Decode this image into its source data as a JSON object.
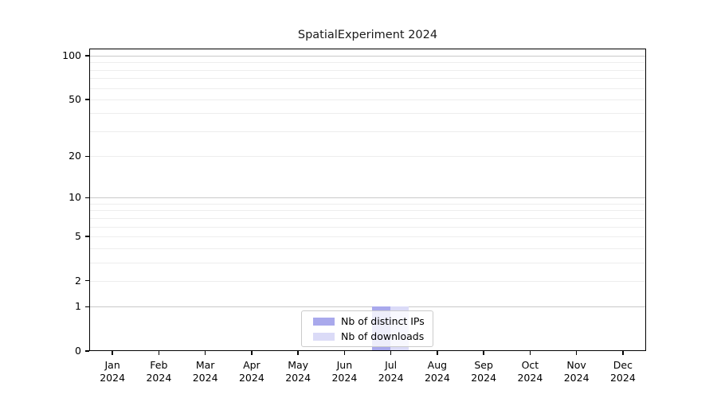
{
  "figure": {
    "background": "#ffffff"
  },
  "chart_data": {
    "type": "bar",
    "title": "SpatialExperiment 2024",
    "year": "2024",
    "categories": [
      "Jan",
      "Feb",
      "Mar",
      "Apr",
      "May",
      "Jun",
      "Jul",
      "Aug",
      "Sep",
      "Oct",
      "Nov",
      "Dec"
    ],
    "series": [
      {
        "name": "Nb of distinct IPs",
        "color": "#a9a9ec",
        "values": [
          0,
          0,
          0,
          0,
          0,
          0,
          1,
          0,
          0,
          0,
          0,
          0
        ]
      },
      {
        "name": "Nb of downloads",
        "color": "#dbdbf7",
        "values": [
          0,
          0,
          0,
          0,
          0,
          0,
          1,
          0,
          0,
          0,
          0,
          0
        ]
      }
    ],
    "xlabel": "",
    "ylabel": "",
    "x_axis": {
      "tick_labels": [
        "Jan 2024",
        "Feb 2024",
        "Mar 2024",
        "Apr 2024",
        "May 2024",
        "Jun 2024",
        "Jul 2024",
        "Aug 2024",
        "Sep 2024",
        "Oct 2024",
        "Nov 2024",
        "Dec 2024"
      ]
    },
    "y_axis": {
      "scale": "log1p",
      "tick_values": [
        0,
        1,
        2,
        5,
        10,
        20,
        50,
        100
      ],
      "tick_labels": [
        "0",
        "1",
        "2",
        "5",
        "10",
        "20",
        "50",
        "100"
      ],
      "major_gridlines": [
        1,
        10,
        100
      ],
      "minor_gridlines": [
        2,
        3,
        4,
        5,
        6,
        7,
        8,
        9,
        20,
        30,
        40,
        50,
        60,
        70,
        80,
        90
      ],
      "ylim": [
        0,
        112
      ]
    },
    "legend": {
      "position": "bottom-center",
      "entries": [
        "Nb of distinct IPs",
        "Nb of downloads"
      ]
    },
    "grid": true,
    "colors": {
      "major_grid": "#c9c9c9",
      "minor_grid": "#ededed",
      "axis_frame": "#000000",
      "title_text": "#1a1a1a"
    }
  }
}
